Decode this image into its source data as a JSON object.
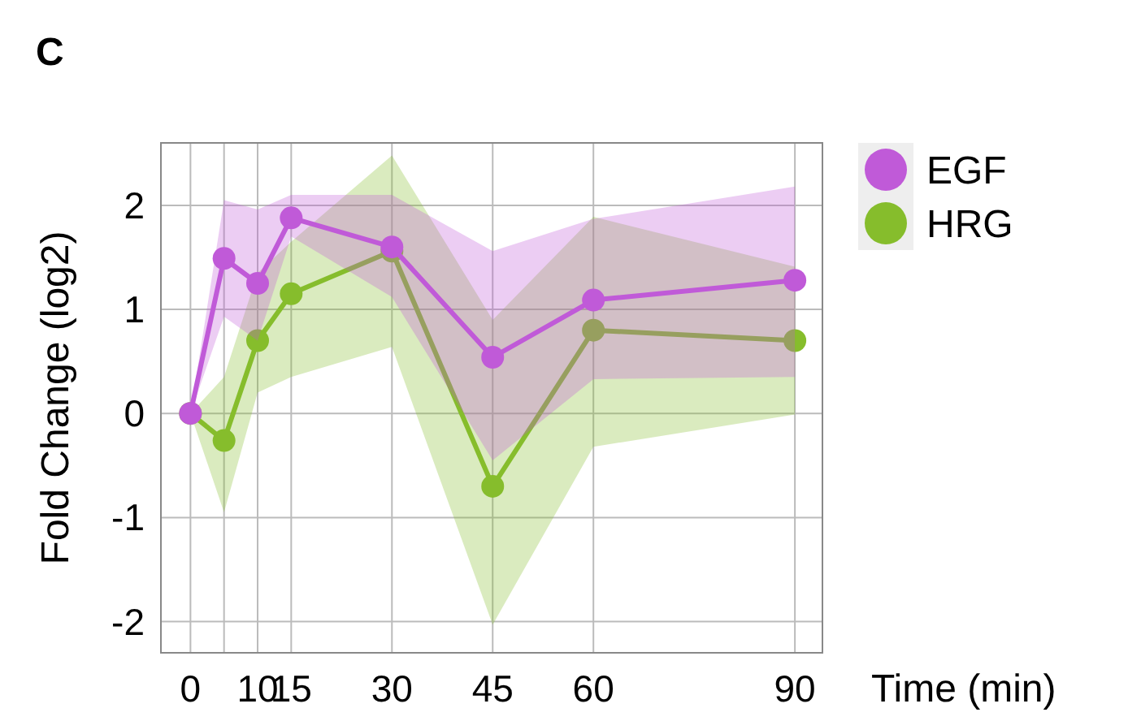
{
  "chart_data": {
    "type": "line",
    "title": "C",
    "xlabel": "Time (min)",
    "ylabel": "Fold Change (log2)",
    "x": [
      0,
      5,
      10,
      15,
      30,
      45,
      60,
      90
    ],
    "series": [
      {
        "name": "EGF",
        "color": "#c05ad8",
        "values": [
          0,
          1.49,
          1.25,
          1.88,
          1.6,
          0.54,
          1.09,
          1.28
        ],
        "lower": [
          0,
          0.93,
          0.7,
          1.7,
          1.12,
          -0.45,
          0.33,
          0.35
        ],
        "upper": [
          0,
          2.05,
          1.96,
          2.1,
          2.1,
          1.56,
          1.87,
          2.18
        ]
      },
      {
        "name": "HRG",
        "color": "#86bd2c",
        "values": [
          0,
          -0.26,
          0.7,
          1.15,
          1.56,
          -0.7,
          0.8,
          0.7
        ],
        "lower": [
          0,
          -0.95,
          0.2,
          0.35,
          0.64,
          -2.03,
          -0.32,
          -0.01
        ],
        "upper": [
          0,
          0.35,
          1.35,
          1.65,
          2.48,
          0.9,
          1.89,
          1.41
        ]
      }
    ],
    "xlim": [
      -4.4,
      94.1
    ],
    "ylim": [
      -2.3,
      2.6
    ],
    "xticks": [
      0,
      {
        "value": 5,
        "label": null
      },
      10,
      15,
      30,
      45,
      60,
      90
    ],
    "yticks": [
      -2,
      -1,
      0,
      1,
      2
    ],
    "grid": true,
    "legend": "top right",
    "marker": "circle",
    "line_style": "solid"
  }
}
